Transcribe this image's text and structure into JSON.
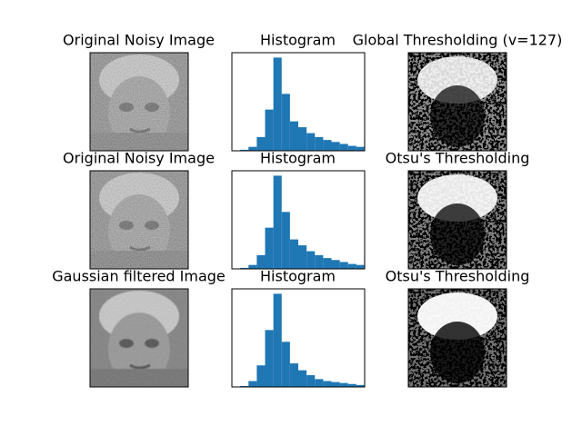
{
  "figure": {
    "rows": [
      {
        "image_title": "Original Noisy Image",
        "hist_title": "Histogram",
        "thresh_title": "Global Thresholding (v=127)"
      },
      {
        "image_title": "Original Noisy Image",
        "hist_title": "Histogram",
        "thresh_title": "Otsu's Thresholding"
      },
      {
        "image_title": "Gaussian filtered Image",
        "hist_title": "Histogram",
        "thresh_title": "Otsu's Thresholding"
      }
    ]
  },
  "colors": {
    "hist_fill": "#1f77b4",
    "axes_edge": "#000000",
    "thresh_background": "#000000",
    "thresh_foreground": "#ffffff"
  },
  "chart_data": [
    {
      "type": "bar",
      "title": "Histogram",
      "bins": [
        0,
        16,
        32,
        48,
        64,
        80,
        96,
        112,
        128,
        144,
        160,
        176,
        192,
        208,
        224,
        240,
        255
      ],
      "values": [
        0,
        1,
        4,
        14,
        42,
        95,
        58,
        30,
        24,
        18,
        14,
        11,
        9,
        7,
        5,
        4,
        12
      ],
      "xlim": [
        0,
        256
      ],
      "ylim": [
        0,
        100
      ],
      "xlabel": "",
      "ylabel": "",
      "axes_visible": false
    },
    {
      "type": "bar",
      "title": "Histogram",
      "bins": [
        0,
        16,
        32,
        48,
        64,
        80,
        96,
        112,
        128,
        144,
        160,
        176,
        192,
        208,
        224,
        240,
        255
      ],
      "values": [
        0,
        1,
        4,
        14,
        42,
        95,
        58,
        30,
        24,
        18,
        14,
        11,
        9,
        7,
        5,
        4,
        12
      ],
      "xlim": [
        0,
        256
      ],
      "ylim": [
        0,
        100
      ],
      "xlabel": "",
      "ylabel": "",
      "axes_visible": false
    },
    {
      "type": "bar",
      "title": "Histogram",
      "bins": [
        0,
        16,
        32,
        48,
        64,
        80,
        96,
        112,
        128,
        144,
        160,
        176,
        192,
        208,
        224,
        240,
        255
      ],
      "values": [
        0,
        1,
        6,
        22,
        58,
        95,
        46,
        24,
        17,
        12,
        8,
        6,
        5,
        4,
        3,
        2,
        1
      ],
      "xlim": [
        0,
        256
      ],
      "ylim": [
        0,
        100
      ],
      "xlabel": "",
      "ylabel": "",
      "axes_visible": false
    }
  ]
}
